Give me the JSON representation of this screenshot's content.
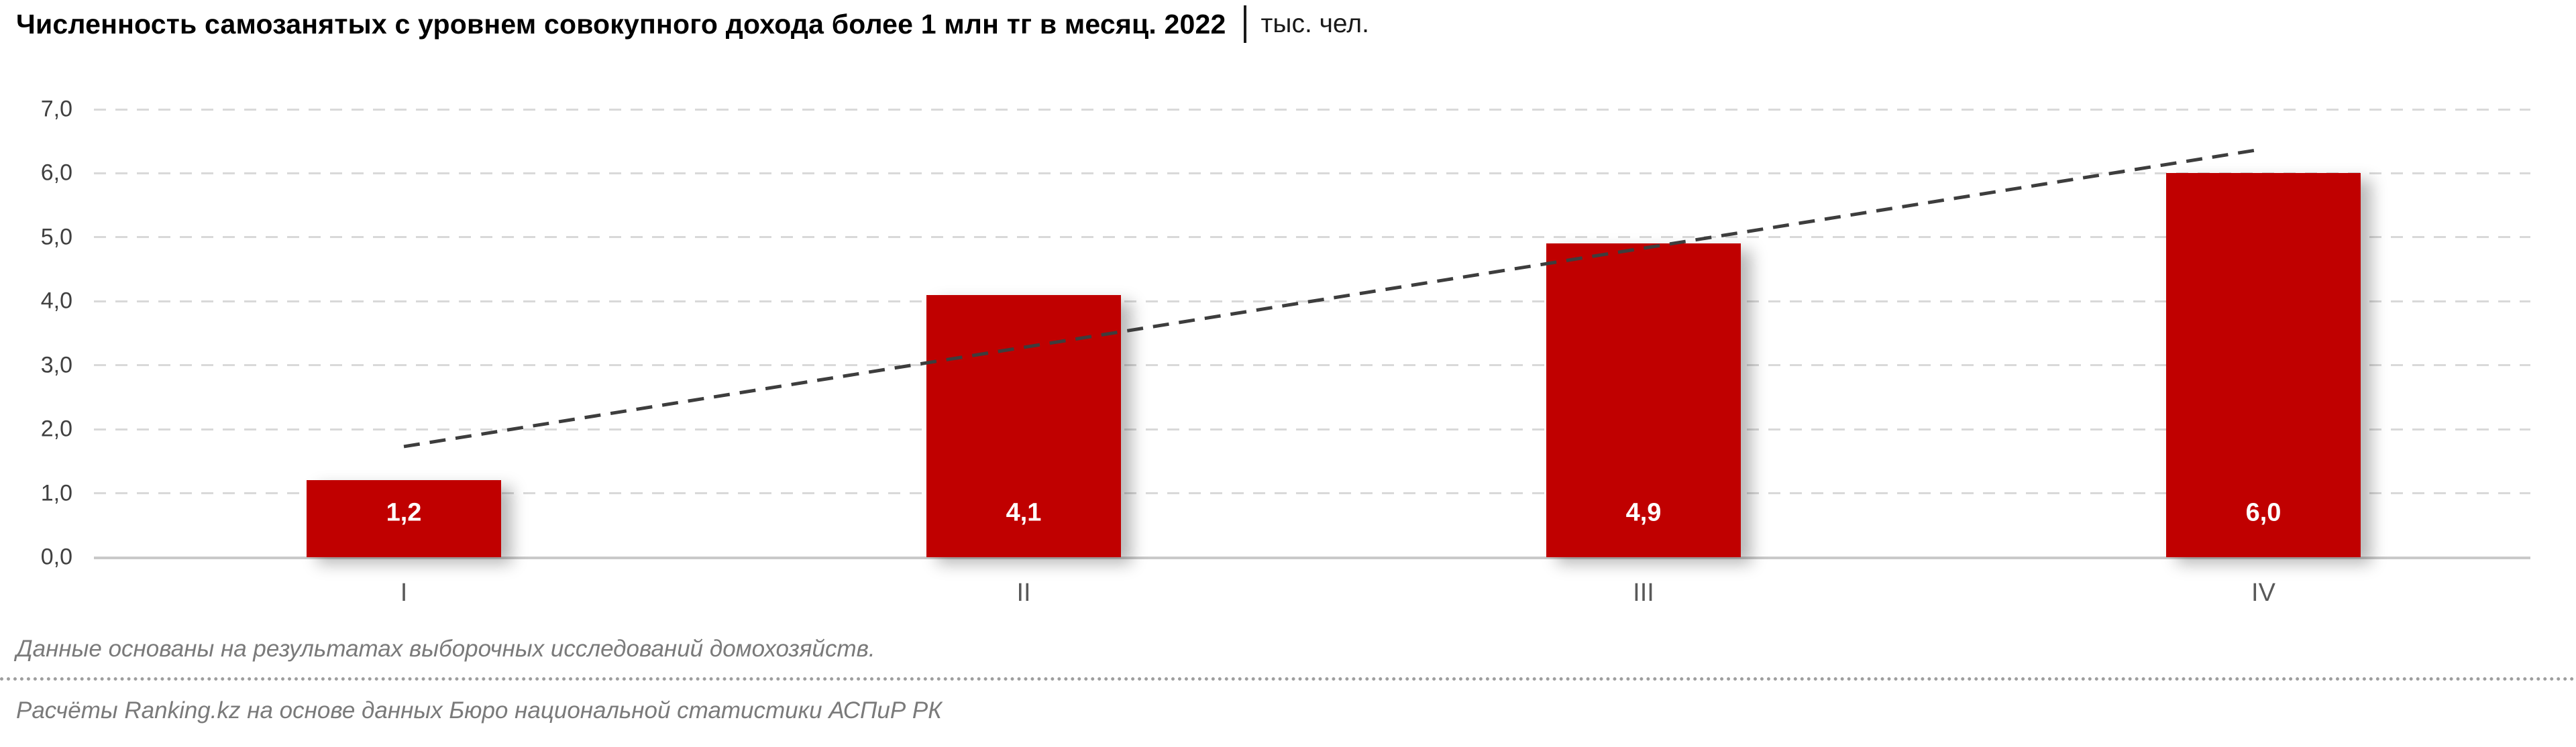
{
  "title": {
    "main": "Численность самозанятых с уровнем совокупного дохода более 1 млн тг в месяц. 2022",
    "unit": "тыс. чел."
  },
  "chart_data": {
    "type": "bar",
    "categories": [
      "I",
      "II",
      "III",
      "IV"
    ],
    "values": [
      1.2,
      4.1,
      4.9,
      6.0
    ],
    "value_labels": [
      "1,2",
      "4,1",
      "4,9",
      "6,0"
    ],
    "y_ticks": [
      {
        "value": 7,
        "label": "7,0"
      },
      {
        "value": 6,
        "label": "6,0"
      },
      {
        "value": 5,
        "label": "5,0"
      },
      {
        "value": 4,
        "label": "4,0"
      },
      {
        "value": 3,
        "label": "3,0"
      },
      {
        "value": 2,
        "label": "2,0"
      },
      {
        "value": 1,
        "label": "1,0"
      },
      {
        "value": 0,
        "label": "0,0"
      }
    ],
    "ylim": [
      0,
      7
    ],
    "grid": "horizontal-dashed",
    "legend": "none",
    "bar_color": "#C00000",
    "bar_label_color": "#ffffff",
    "trendline": {
      "type": "linear",
      "style": "dashed",
      "color": "#3d3d3d",
      "start_value": 1.73,
      "end_value": 6.38
    }
  },
  "footnotes": {
    "note": "Данные основаны на результатах выборочных исследований домохозяйств.",
    "source": "Расчёты Ranking.kz на основе данных Бюро национальной статистики АСПиР РК"
  }
}
